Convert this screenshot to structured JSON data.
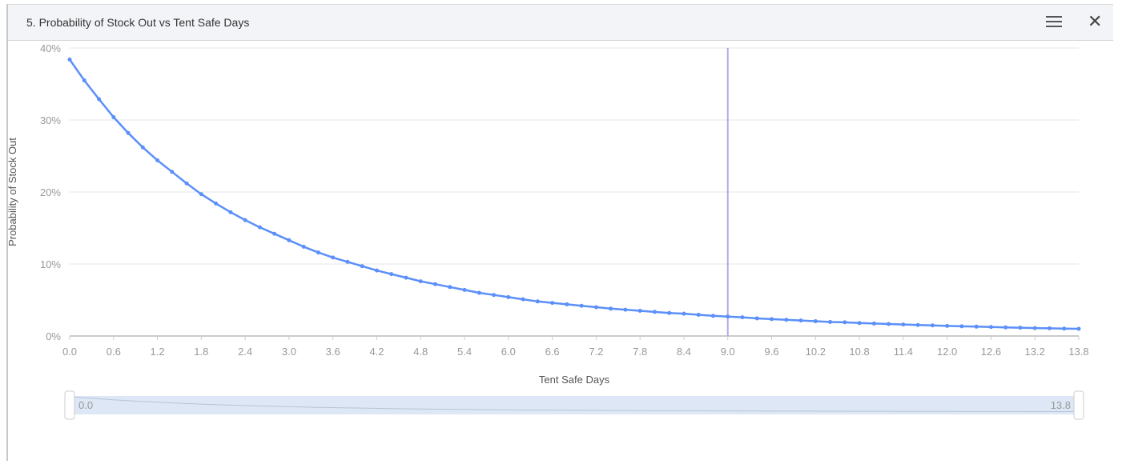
{
  "window": {
    "title": "5. Probability of Stock Out vs Tent Safe Days",
    "menu_icon": "hamburger-icon",
    "close_icon": "close-icon"
  },
  "chart_data": {
    "type": "line",
    "title": "",
    "xlabel": "Tent Safe Days",
    "ylabel": "Probability of Stock Out",
    "ylim": [
      0,
      40
    ],
    "xlim": [
      0,
      13.8
    ],
    "yticks": [
      "0%",
      "10%",
      "20%",
      "30%",
      "40%"
    ],
    "xticks": [
      "0.0",
      "0.6",
      "1.2",
      "1.8",
      "2.4",
      "3.0",
      "3.6",
      "4.2",
      "4.8",
      "5.4",
      "6.0",
      "6.6",
      "7.2",
      "7.8",
      "8.4",
      "9.0",
      "9.6",
      "10.2",
      "10.8",
      "11.4",
      "12.0",
      "12.6",
      "13.2",
      "13.8"
    ],
    "grid": true,
    "series_color": "#5b8ff9",
    "marker_line": {
      "x": 9.0,
      "color": "#b8a8e6"
    },
    "x": [
      0,
      0.2,
      0.4,
      0.6,
      0.8,
      1.0,
      1.2,
      1.4,
      1.6,
      1.8,
      2.0,
      2.2,
      2.4,
      2.6,
      2.8,
      3.0,
      3.2,
      3.4,
      3.6,
      3.8,
      4.0,
      4.2,
      4.4,
      4.6,
      4.8,
      5.0,
      5.2,
      5.4,
      5.6,
      5.8,
      6.0,
      6.2,
      6.4,
      6.6,
      6.8,
      7.0,
      7.2,
      7.4,
      7.6,
      7.8,
      8.0,
      8.2,
      8.4,
      8.6,
      8.8,
      9.0,
      9.2,
      9.4,
      9.6,
      9.8,
      10.0,
      10.2,
      10.4,
      10.6,
      10.8,
      11.0,
      11.2,
      11.4,
      11.6,
      11.8,
      12.0,
      12.2,
      12.4,
      12.6,
      12.8,
      13.0,
      13.2,
      13.4,
      13.6,
      13.8
    ],
    "y": [
      38.4,
      35.5,
      32.9,
      30.4,
      28.2,
      26.2,
      24.4,
      22.8,
      21.2,
      19.7,
      18.4,
      17.2,
      16.1,
      15.1,
      14.2,
      13.3,
      12.4,
      11.6,
      10.9,
      10.3,
      9.7,
      9.1,
      8.6,
      8.1,
      7.6,
      7.2,
      6.8,
      6.4,
      6.0,
      5.7,
      5.4,
      5.1,
      4.8,
      4.6,
      4.4,
      4.2,
      4.0,
      3.8,
      3.65,
      3.5,
      3.35,
      3.2,
      3.1,
      2.95,
      2.8,
      2.7,
      2.6,
      2.45,
      2.35,
      2.25,
      2.15,
      2.05,
      1.95,
      1.9,
      1.8,
      1.73,
      1.67,
      1.6,
      1.53,
      1.47,
      1.4,
      1.35,
      1.3,
      1.25,
      1.2,
      1.15,
      1.1,
      1.07,
      1.03,
      1.0
    ]
  },
  "slider": {
    "start_label": "0.0",
    "end_label": "13.8"
  }
}
